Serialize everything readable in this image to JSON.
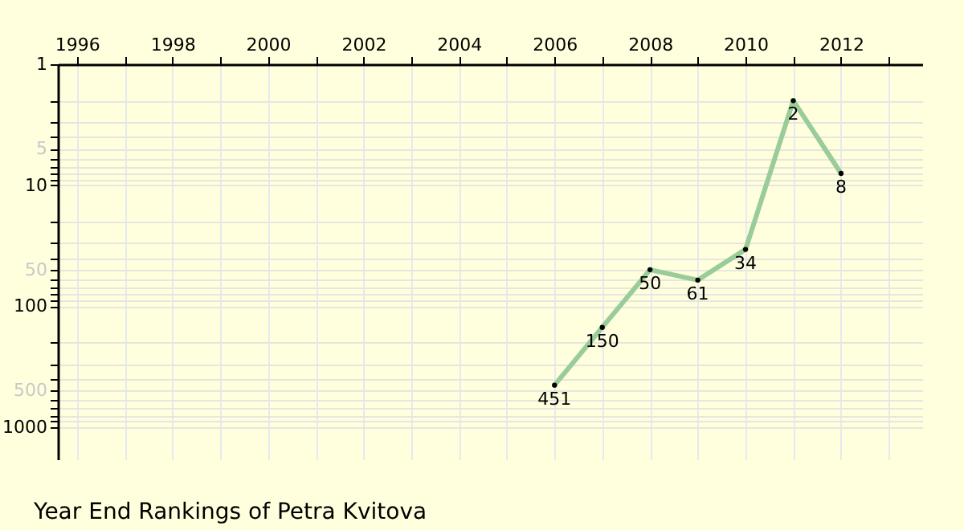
{
  "chart_data": {
    "type": "line",
    "title": "Year End Rankings of Petra Kvitova",
    "x": [
      2006,
      2007,
      2008,
      2009,
      2010,
      2011,
      2012
    ],
    "series": [
      {
        "color": "#99cc99",
        "values": [
          451,
          150,
          50,
          61,
          34,
          2,
          8
        ]
      }
    ],
    "data_labels": true,
    "marker": "circle",
    "log": "y",
    "grid": true,
    "xlim": [
      1995.6,
      2013.7
    ],
    "xticks": [
      1996,
      {
        "value": 1997,
        "label": null
      },
      1998,
      {
        "value": 1999,
        "label": null
      },
      2000,
      {
        "value": 2001,
        "label": null
      },
      2002,
      {
        "value": 2003,
        "label": null
      },
      2004,
      {
        "value": 2005,
        "label": null
      },
      2006,
      {
        "value": 2007,
        "label": null
      },
      2008,
      {
        "value": 2009,
        "label": null
      },
      2010,
      {
        "value": 2011,
        "label": null
      },
      2012,
      {
        "value": 2013,
        "label": null
      }
    ],
    "ylim": [
      1850,
      1
    ],
    "yticks": [
      1,
      {
        "value": 2,
        "label": null
      },
      {
        "value": 3,
        "label": null
      },
      {
        "value": 4,
        "label": null
      },
      5,
      {
        "value": 6,
        "label": null
      },
      {
        "value": 7,
        "label": null
      },
      {
        "value": 8,
        "label": null
      },
      {
        "value": 9,
        "label": null
      },
      10,
      {
        "value": 20,
        "label": null
      },
      {
        "value": 30,
        "label": null
      },
      {
        "value": 40,
        "label": null
      },
      50,
      {
        "value": 60,
        "label": null
      },
      {
        "value": 70,
        "label": null
      },
      {
        "value": 80,
        "label": null
      },
      {
        "value": 90,
        "label": null
      },
      100,
      {
        "value": 200,
        "label": null
      },
      {
        "value": 300,
        "label": null
      },
      {
        "value": 400,
        "label": null
      },
      500,
      {
        "value": 600,
        "label": null
      },
      {
        "value": 700,
        "label": null
      },
      {
        "value": 800,
        "label": null
      },
      {
        "value": 900,
        "label": null
      },
      1000
    ]
  }
}
